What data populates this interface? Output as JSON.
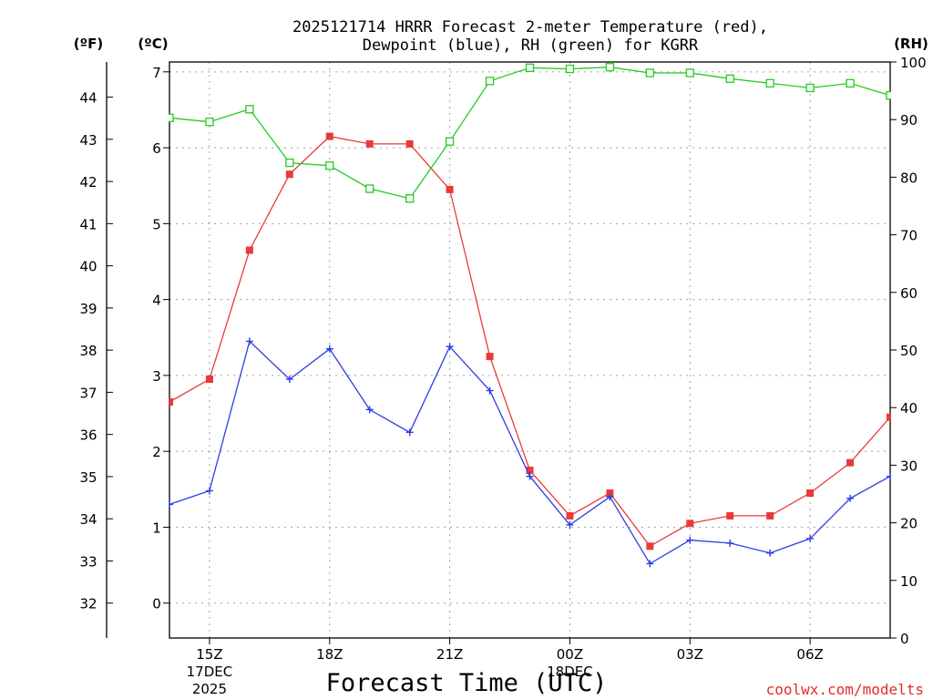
{
  "chart_data": {
    "type": "line",
    "title_lines": [
      "2025121714 HRRR Forecast 2-meter Temperature (red),",
      "Dewpoint (blue), RH (green) for KGRR"
    ],
    "xlabel": "Forecast Time (UTC)",
    "credit": "coolwx.com/modelts",
    "x_hours": [
      14,
      15,
      16,
      17,
      18,
      19,
      20,
      21,
      22,
      23,
      24,
      25,
      26,
      27,
      28,
      29,
      30,
      31,
      32
    ],
    "xlim": [
      14,
      32
    ],
    "x_ticks": [
      {
        "hour": 15,
        "label": "15Z",
        "sub1": "17DEC",
        "sub2": "2025"
      },
      {
        "hour": 18,
        "label": "18Z"
      },
      {
        "hour": 21,
        "label": "21Z"
      },
      {
        "hour": 24,
        "label": "00Z",
        "sub1": "18DEC"
      },
      {
        "hour": 27,
        "label": "03Z"
      },
      {
        "hour": 30,
        "label": "06Z"
      }
    ],
    "axes": {
      "celsius": {
        "label": "(ºC)",
        "ylim": [
          -0.46,
          7.13
        ],
        "ticks": [
          0,
          1,
          2,
          3,
          4,
          5,
          6,
          7
        ]
      },
      "fahrenheit": {
        "label": "(ºF)",
        "ticks": [
          32,
          33,
          34,
          35,
          36,
          37,
          38,
          39,
          40,
          41,
          42,
          43,
          44
        ]
      },
      "rh": {
        "label": "(RH)",
        "ylim": [
          0,
          100
        ],
        "ticks": [
          0,
          10,
          20,
          30,
          40,
          50,
          60,
          70,
          80,
          90,
          100
        ]
      }
    },
    "series": [
      {
        "name": "2-meter Temperature",
        "unit": "C",
        "color": "#e83a3a",
        "marker": "filled-square",
        "values": [
          2.65,
          2.95,
          4.65,
          5.65,
          6.15,
          6.05,
          6.05,
          5.45,
          3.25,
          1.75,
          1.15,
          1.45,
          0.75,
          1.05,
          1.15,
          1.15,
          1.45,
          1.85,
          2.45
        ]
      },
      {
        "name": "Dewpoint",
        "unit": "C",
        "color": "#2c3ee0",
        "marker": "plus",
        "values": [
          1.3,
          1.48,
          3.45,
          2.95,
          3.35,
          2.55,
          2.25,
          3.38,
          2.8,
          1.67,
          1.03,
          1.4,
          0.52,
          0.83,
          0.79,
          0.66,
          0.85,
          1.38,
          1.67
        ]
      },
      {
        "name": "Relative Humidity",
        "unit": "%",
        "color": "#22cc22",
        "marker": "open-square",
        "values": [
          90.3,
          89.6,
          91.8,
          82.5,
          82.0,
          78.0,
          76.3,
          86.2,
          96.7,
          99.0,
          98.8,
          99.1,
          98.1,
          98.1,
          97.1,
          96.3,
          95.5,
          96.3,
          94.2
        ]
      }
    ]
  }
}
